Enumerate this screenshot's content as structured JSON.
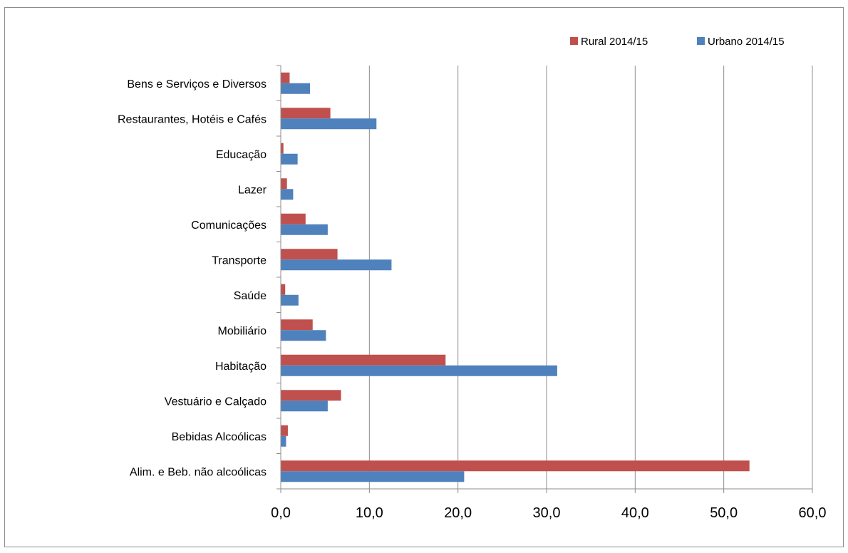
{
  "chart_data": {
    "type": "bar",
    "orientation": "horizontal",
    "categories": [
      "Alim. e Beb. não alcoólicas",
      "Bebidas Alcoólicas",
      "Vestuário e Calçado",
      "Habitação",
      "Mobiliário",
      "Saúde",
      "Transporte",
      "Comunicações",
      "Lazer",
      "Educação",
      "Restaurantes, Hotéis e Cafés",
      "Bens e Serviços e Diversos"
    ],
    "series": [
      {
        "name": "Rural 2014/15",
        "color": "#c0504d",
        "values": [
          52.9,
          0.8,
          6.8,
          18.6,
          3.6,
          0.5,
          6.4,
          2.8,
          0.7,
          0.3,
          5.6,
          1.0
        ]
      },
      {
        "name": "Urbano 2014/15",
        "color": "#4f81bd",
        "values": [
          20.7,
          0.6,
          5.3,
          31.2,
          5.1,
          2.0,
          12.5,
          5.3,
          1.4,
          1.9,
          10.8,
          3.3
        ]
      }
    ],
    "xlim": [
      0,
      60
    ],
    "xticks": [
      "0,0",
      "10,0",
      "20,0",
      "30,0",
      "40,0",
      "50,0",
      "60,0"
    ],
    "grid": true,
    "legend": "top-right"
  }
}
